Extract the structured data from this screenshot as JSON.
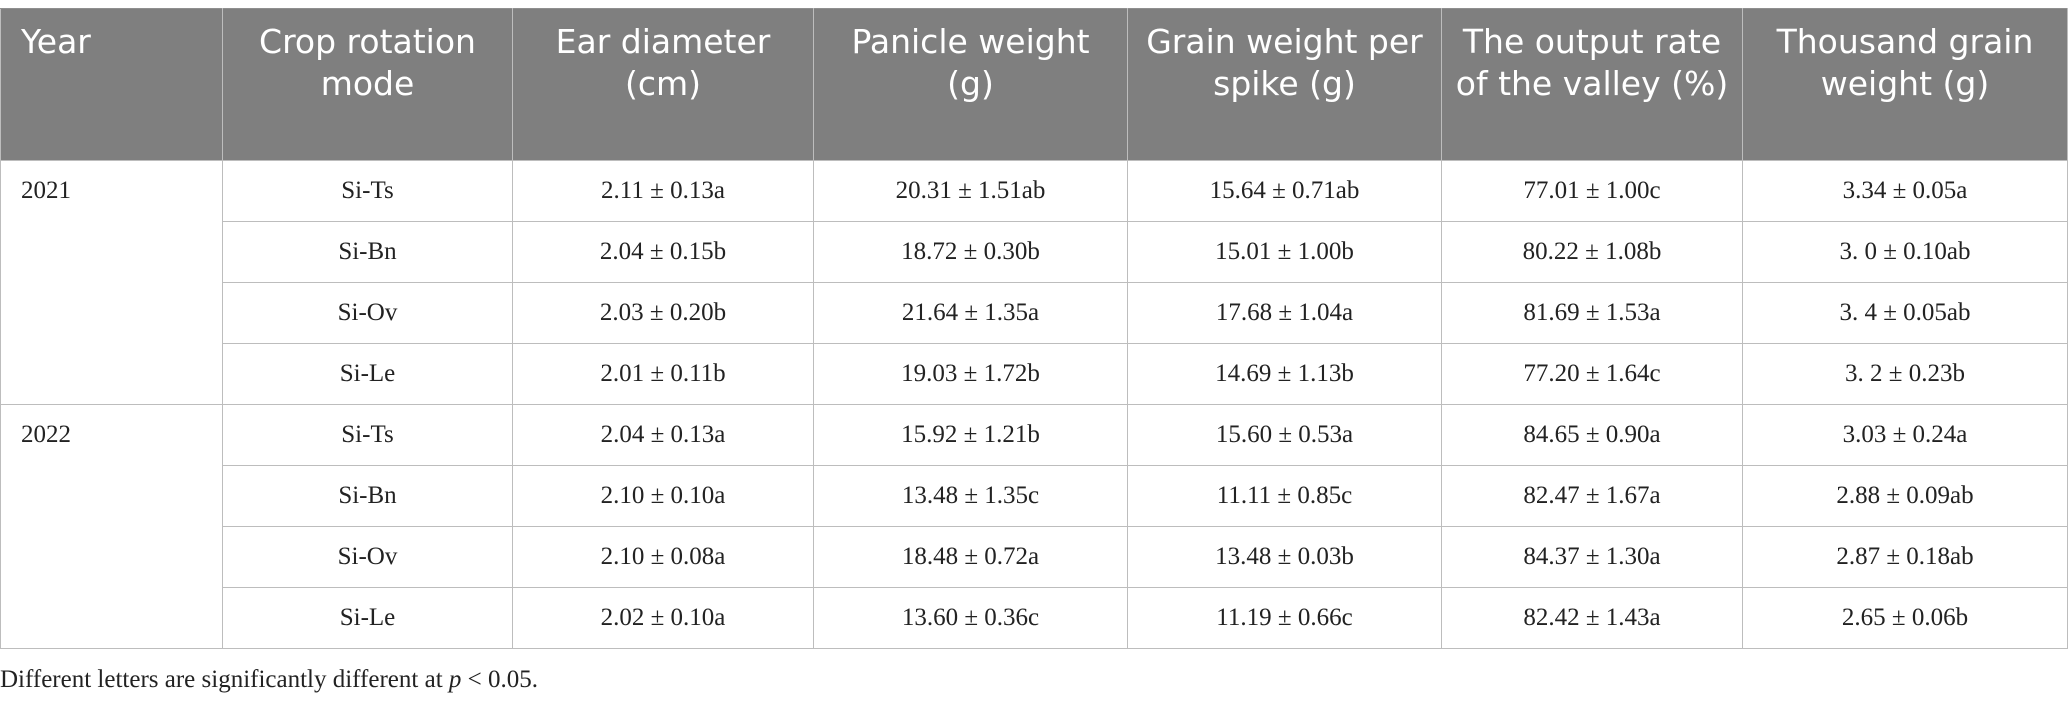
{
  "table": {
    "headers": [
      "Year",
      "Crop rotation mode",
      "Ear diameter (cm)",
      "Panicle weight (g)",
      "Grain weight per spike (g)",
      "The output rate of the valley (%)",
      "Thousand grain weight (g)"
    ],
    "groups": [
      {
        "year": "2021",
        "rows": [
          [
            "Si-Ts",
            "2.11 ± 0.13a",
            "20.31 ± 1.51ab",
            "15.64 ± 0.71ab",
            "77.01 ± 1.00c",
            "3.34 ± 0.05a"
          ],
          [
            "Si-Bn",
            "2.04 ± 0.15b",
            "18.72 ± 0.30b",
            "15.01 ± 1.00b",
            "80.22 ± 1.08b",
            "3. 0 ± 0.10ab"
          ],
          [
            "Si-Ov",
            "2.03 ± 0.20b",
            "21.64 ± 1.35a",
            "17.68 ± 1.04a",
            "81.69 ± 1.53a",
            "3. 4 ± 0.05ab"
          ],
          [
            "Si-Le",
            "2.01 ± 0.11b",
            "19.03 ± 1.72b",
            "14.69 ± 1.13b",
            "77.20 ± 1.64c",
            "3. 2 ± 0.23b"
          ]
        ]
      },
      {
        "year": "2022",
        "rows": [
          [
            "Si-Ts",
            "2.04 ± 0.13a",
            "15.92 ± 1.21b",
            "15.60 ± 0.53a",
            "84.65 ± 0.90a",
            "3.03 ± 0.24a"
          ],
          [
            "Si-Bn",
            "2.10 ± 0.10a",
            "13.48 ± 1.35c",
            "11.11 ± 0.85c",
            "82.47 ± 1.67a",
            "2.88 ± 0.09ab"
          ],
          [
            "Si-Ov",
            "2.10 ± 0.08a",
            "18.48 ± 0.72a",
            "13.48 ± 0.03b",
            "84.37 ± 1.30a",
            "2.87 ± 0.18ab"
          ],
          [
            "Si-Le",
            "2.02 ± 0.10a",
            "13.60 ± 0.36c",
            "11.19 ± 0.66c",
            "82.42 ± 1.43a",
            "2.65 ± 0.06b"
          ]
        ]
      }
    ]
  },
  "footnote": {
    "before": "Different letters are significantly different at ",
    "variable": "p",
    "after": " < 0.05."
  },
  "colors": {
    "header_bg": "#7f7f7f",
    "header_text": "#ffffff",
    "grid": "#bdbdbd",
    "body_text": "#222222"
  }
}
